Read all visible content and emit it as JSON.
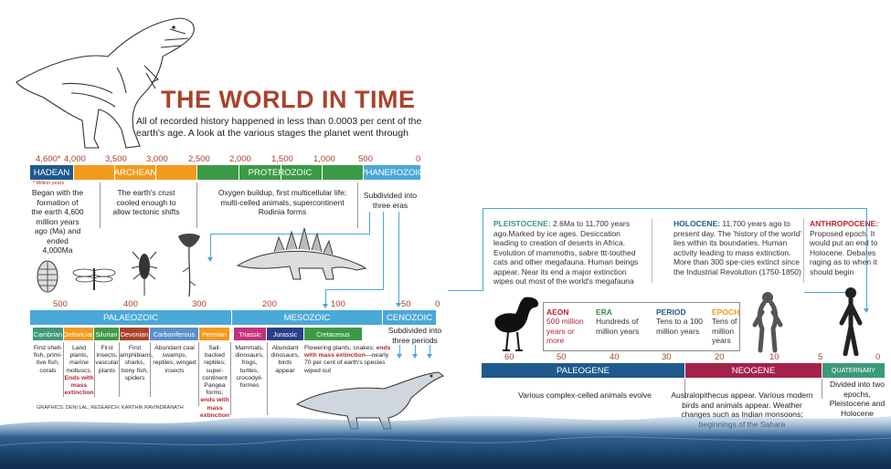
{
  "title": "THE WORLD IN TIME",
  "subtitle": "All of recorded history happened in less than 0.0003 per cent of the earth's age. A look at the various stages the planet went through",
  "top_ticks": [
    "4,600*",
    "4,000",
    "3,500",
    "3,000",
    "2,500",
    "2,000",
    "1,500",
    "1,000",
    "500",
    "0"
  ],
  "million_years_note": "* Million years",
  "aeons": {
    "hadean": "HADEAN",
    "archean": "ARCHEAN",
    "proterozoic": "PROTEROZOIC",
    "phanerozoic": "PHANEROZOIC"
  },
  "aeon_text": {
    "hadean": "Began with the formation of the earth 4,600 million years ago (Ma) and ended 4,000Ma",
    "archean": "The earth's crust cooled enough to allow tectonic shifts",
    "proterozoic": "Oxygen buildup, first multicellular life; multi-celled animals, supercontinent Rodinia forms",
    "phanerozoic": "Subdivided into three eras"
  },
  "era_ticks": [
    "500",
    "400",
    "300",
    "200",
    "100",
    "50",
    "0"
  ],
  "eras": {
    "palaeozoic": "PALAEOZOIC",
    "mesozoic": "MESOZOIC",
    "cenozoic": "CENOZOIC"
  },
  "cenozoic_text": "Subdivided into three periods",
  "periods": [
    {
      "name": "Cambrian",
      "text": "First shell-fish, primi-tive fish, corals",
      "extra": ""
    },
    {
      "name": "Ordovician",
      "text": "Land plants, marine molluscs.",
      "extra": "Ends with mass extinction"
    },
    {
      "name": "Silurian",
      "text": "First insects, vascular plants",
      "extra": ""
    },
    {
      "name": "Devonian",
      "text": "First amphibians, sharks, bony fish, spiders",
      "extra": ""
    },
    {
      "name": "Carboniferous",
      "text": "Abundant coal swamps, reptiles, winged insects",
      "extra": ""
    },
    {
      "name": "Permian",
      "text": "Sail-backed reptiles; super-continent Pangea forms;",
      "extra": "ends with mass extinction"
    },
    {
      "name": "Triassic",
      "text": "Mammals, dinosaurs, frogs, turtles, crocodyli-formes",
      "extra": ""
    },
    {
      "name": "Jurassic",
      "text": "Abundant dinosaurs, birds appear",
      "extra": ""
    },
    {
      "name": "Cretaceous",
      "text": "Flowering plants, snakes;",
      "extra": "ends with mass extinction",
      "tail": "—nearly 70 per cent of earth's species wiped out"
    }
  ],
  "credits": "GRAPHICS: DENI LAL; RESEARCH: KARTHIK RAVINDRANATH",
  "epochs": {
    "pleistocene_name": "PLEISTOCENE:",
    "pleistocene_text": "2.6Ma to 11,700 years ago.Marked by ice ages. Desiccation leading to creation of deserts in Africa. Evolution of mammoths, sabre ttt-toothed cats and other megafauna. Human beings appear. Near its end a major extinction wipes out most of the world's megafauna",
    "holocene_name": "HOLOCENE:",
    "holocene_text": "11,700 years ago to present day. The 'history of the world' lies within its boundaries. Human activity leading to mass extinction. More than 300 spe-cies extinct since the Industrial Revolution (1750-1850)",
    "anthropocene_name": "ANTHROPOCENE:",
    "anthropocene_text": "Proposed epoch. It would put an end to Holocene. Debates raging as to when it should begin"
  },
  "legend": [
    {
      "head": "AEON",
      "text": "500 million years or more",
      "color": "#b3262e"
    },
    {
      "head": "ERA",
      "text": "Hundreds of million years",
      "color": "#3c8a3c"
    },
    {
      "head": "PERIOD",
      "text": "Tens to a 100 million years",
      "color": "#1e5a8c"
    },
    {
      "head": "EPOCH",
      "text": "Tens of million years",
      "color": "#f29a1e"
    }
  ],
  "cenozoic_ticks": [
    "60",
    "50",
    "40",
    "30",
    "20",
    "10",
    "5",
    "0"
  ],
  "cenozoic_periods": {
    "paleogene": "PALEOGENE",
    "neogene": "NEOGENE",
    "quaternary": "QUATERNARY"
  },
  "cenozoic_text_items": {
    "paleogene": "Various complex-celled animals evolve",
    "neogene": "Australopithecus appear. Various modern birds and animals appear. Weather changes such as Indian monsoons; beginnings of the Sahara",
    "quaternary": "Divided into two epochs, Pleistocene and Holocene"
  },
  "colors": {
    "title": "#a9432c",
    "hadean": "#1e5a8c",
    "archean": "#f29a1e",
    "proterozoic": "#3c9a47",
    "phanerozoic": "#4aa8d8",
    "paleogene": "#1e5a8c",
    "neogene": "#a3224a",
    "quaternary": "#3c9a7a"
  }
}
